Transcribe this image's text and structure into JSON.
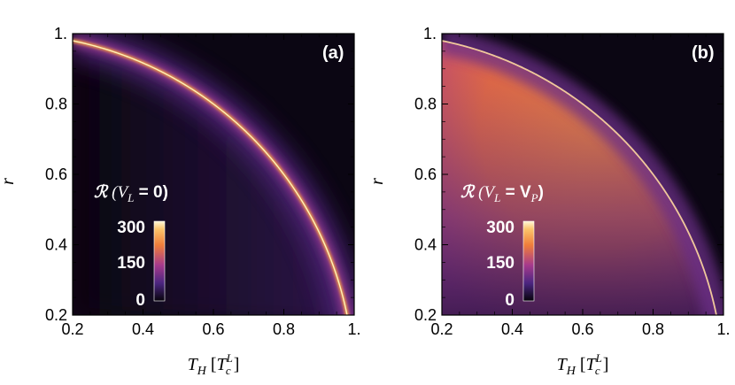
{
  "chart_data": [
    {
      "type": "heatmap",
      "panel_label": "(a)",
      "xlabel_symbol": "T",
      "xlabel_sub": "H",
      "xlabel_unit_sym": "T",
      "xlabel_unit_sup": "L",
      "xlabel_unit_sub": "c",
      "ylabel": "r",
      "x_ticks": [
        "0.2",
        "0.4",
        "0.6",
        "0.8",
        "1."
      ],
      "y_ticks": [
        "0.2",
        "0.4",
        "0.6",
        "0.8",
        "1."
      ],
      "xlim": [
        0.2,
        1.0
      ],
      "ylim": [
        0.2,
        1.0
      ],
      "colorbar": {
        "title_symbol": "ℛ",
        "title_rest": "(V",
        "title_sub": "L",
        "title_eq": " = 0)",
        "ticks": [
          "0",
          "150",
          "300"
        ],
        "range": [
          0,
          300
        ]
      },
      "feature": "bright ridge along r = sqrt(1 - T_H^2), dark elsewhere"
    },
    {
      "type": "heatmap",
      "panel_label": "(b)",
      "xlabel_symbol": "T",
      "xlabel_sub": "H",
      "xlabel_unit_sym": "T",
      "xlabel_unit_sup": "L",
      "xlabel_unit_sub": "c",
      "ylabel": "r",
      "x_ticks": [
        "0.2",
        "0.4",
        "0.6",
        "0.8",
        "1."
      ],
      "y_ticks": [
        "0.2",
        "0.4",
        "0.6",
        "0.8",
        "1."
      ],
      "xlim": [
        0.2,
        1.0
      ],
      "ylim": [
        0.2,
        1.0
      ],
      "colorbar": {
        "title_symbol": "ℛ",
        "title_rest": "(V",
        "title_sub": "L",
        "title_eq": " = V",
        "title_sub2": "P",
        "title_end": ")",
        "ticks": [
          "0",
          "150",
          "300"
        ],
        "range": [
          0,
          300
        ]
      },
      "feature": "bright orange region inside r < sqrt(1 - T_H^2), dark outside"
    }
  ],
  "colors": {
    "dark": "#0b0613",
    "purple": "#5a2d86",
    "magenta": "#a63a8c",
    "orange": "#ef7d3a",
    "bright": "#fff5c0"
  }
}
